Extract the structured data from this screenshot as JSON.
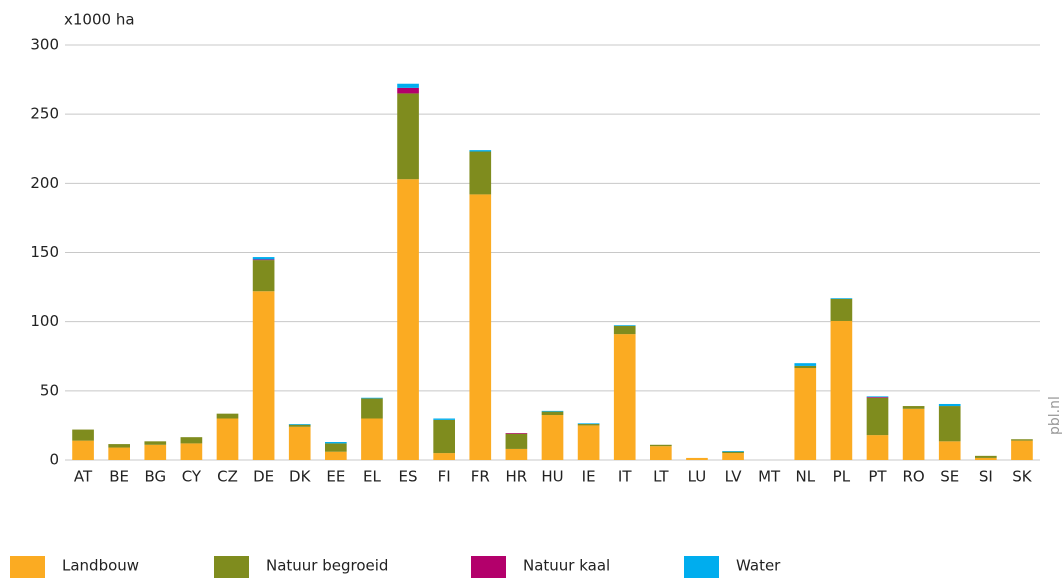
{
  "chart_data": {
    "type": "stacked_bar",
    "y_axis_label": "x1000 ha",
    "source": "pbl.nl",
    "categories": [
      "AT",
      "BE",
      "BG",
      "CY",
      "CZ",
      "DE",
      "DK",
      "EE",
      "EL",
      "ES",
      "FI",
      "FR",
      "HR",
      "HU",
      "IE",
      "IT",
      "LT",
      "LU",
      "LV",
      "MT",
      "NL",
      "PL",
      "PT",
      "RO",
      "SE",
      "SI",
      "SK"
    ],
    "series": [
      {
        "name": "Landbouw",
        "color": "#fbab22",
        "values": [
          14,
          9,
          11,
          12,
          30,
          122,
          24,
          6,
          30,
          203,
          5,
          192,
          8,
          32.5,
          25,
          91,
          10,
          1.5,
          5,
          0,
          66.5,
          100.5,
          18,
          37,
          13.5,
          1.5,
          14
        ]
      },
      {
        "name": "Natuur begroeid",
        "color": "#7f8c1e",
        "values": [
          8,
          2.5,
          2.5,
          4.5,
          3.5,
          22.5,
          1.5,
          6,
          14.5,
          62,
          24,
          31,
          11,
          2.5,
          1,
          6,
          1,
          0,
          1,
          0,
          1.5,
          16,
          27,
          2,
          25.5,
          1.5,
          1
        ]
      },
      {
        "name": "Natuur kaal",
        "color": "#b3006b",
        "values": [
          0,
          0,
          0,
          0,
          0,
          0.5,
          0,
          0,
          0,
          4,
          0,
          0,
          0.5,
          0,
          0,
          0,
          0,
          0,
          0,
          0,
          0,
          0,
          0.5,
          0,
          0,
          0,
          0
        ]
      },
      {
        "name": "Water",
        "color": "#00adee",
        "values": [
          0,
          0,
          0,
          0,
          0,
          1.7,
          0.5,
          1,
          0.5,
          3,
          1,
          1,
          0,
          0.5,
          0.5,
          0.5,
          0,
          0,
          0.5,
          0,
          2,
          0.5,
          0.5,
          0,
          1.5,
          0,
          0
        ]
      }
    ],
    "ylim": [
      0,
      300
    ],
    "yticks": [
      0,
      50,
      100,
      150,
      200,
      250,
      300
    ],
    "grid": true
  }
}
